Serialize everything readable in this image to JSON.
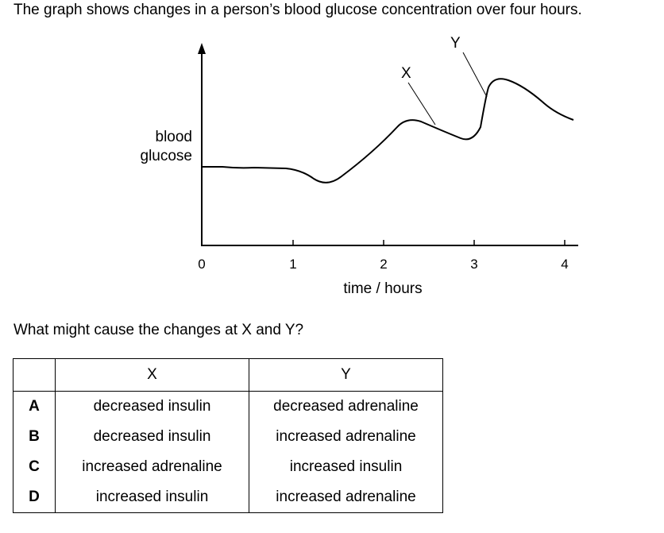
{
  "question": "The graph shows changes in a person’s blood glucose concentration over four hours.",
  "graph": {
    "y_axis_label_line1": "blood",
    "y_axis_label_line2": "glucose",
    "x_axis_label": "time / hours",
    "x_ticks": [
      "0",
      "1",
      "2",
      "3",
      "4"
    ],
    "point_labels": [
      "X",
      "Y"
    ]
  },
  "prompt": "What might cause the changes at X and Y?",
  "table": {
    "headers": [
      "",
      "X",
      "Y"
    ],
    "rows": [
      {
        "option": "A",
        "x": "decreased insulin",
        "y": "decreased adrenaline"
      },
      {
        "option": "B",
        "x": "decreased insulin",
        "y": "increased adrenaline"
      },
      {
        "option": "C",
        "x": "increased adrenaline",
        "y": "increased insulin"
      },
      {
        "option": "D",
        "x": "increased insulin",
        "y": "increased adrenaline"
      }
    ]
  }
}
